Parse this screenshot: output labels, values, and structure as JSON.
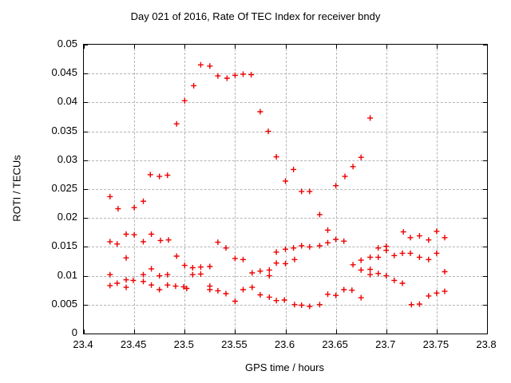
{
  "chart_data": {
    "type": "scatter",
    "title": "Day 021 of 2016, Rate Of TEC Index for receiver bndy",
    "xlabel": "GPS time / hours",
    "ylabel": "ROTI / TECUs",
    "xlim": [
      23.4,
      23.8
    ],
    "ylim": [
      0,
      0.05
    ],
    "xticks": [
      "23.4",
      "23.45",
      "23.5",
      "23.55",
      "23.6",
      "23.65",
      "23.7",
      "23.75",
      "23.8"
    ],
    "yticks": [
      "0",
      "0.005",
      "0.01",
      "0.015",
      "0.02",
      "0.025",
      "0.03",
      "0.035",
      "0.04",
      "0.045",
      "0.05"
    ],
    "grid": true,
    "legend_position": "none",
    "marker": {
      "shape": "plus",
      "color": "#ee0000",
      "size": 7
    },
    "grid_color": "#b4b4b4",
    "frame_color": "#000000",
    "series": [
      {
        "name": "ROTI",
        "points": [
          [
            23.509,
            0.0429
          ],
          [
            23.516,
            0.0465
          ],
          [
            23.525,
            0.0463
          ],
          [
            23.533,
            0.0446
          ],
          [
            23.542,
            0.0442
          ],
          [
            23.55,
            0.0447
          ],
          [
            23.558,
            0.0449
          ],
          [
            23.566,
            0.0448
          ],
          [
            23.5,
            0.0403
          ],
          [
            23.492,
            0.0363
          ],
          [
            23.575,
            0.0384
          ],
          [
            23.583,
            0.035
          ],
          [
            23.591,
            0.0306
          ],
          [
            23.6,
            0.0264
          ],
          [
            23.608,
            0.0284
          ],
          [
            23.616,
            0.0246
          ],
          [
            23.624,
            0.0246
          ],
          [
            23.634,
            0.0206
          ],
          [
            23.65,
            0.0256
          ],
          [
            23.659,
            0.0272
          ],
          [
            23.667,
            0.0289
          ],
          [
            23.675,
            0.0305
          ],
          [
            23.684,
            0.0373
          ],
          [
            23.466,
            0.0275
          ],
          [
            23.475,
            0.0272
          ],
          [
            23.483,
            0.0274
          ],
          [
            23.426,
            0.0237
          ],
          [
            23.434,
            0.0216
          ],
          [
            23.45,
            0.0218
          ],
          [
            23.459,
            0.0229
          ],
          [
            23.442,
            0.0172
          ],
          [
            23.45,
            0.0171
          ],
          [
            23.467,
            0.0172
          ],
          [
            23.426,
            0.0159
          ],
          [
            23.433,
            0.0155
          ],
          [
            23.459,
            0.0159
          ],
          [
            23.476,
            0.0161
          ],
          [
            23.484,
            0.0162
          ],
          [
            23.442,
            0.0131
          ],
          [
            23.492,
            0.0134
          ],
          [
            23.426,
            0.0102
          ],
          [
            23.459,
            0.0102
          ],
          [
            23.467,
            0.0112
          ],
          [
            23.475,
            0.01
          ],
          [
            23.483,
            0.0102
          ],
          [
            23.442,
            0.0093
          ],
          [
            23.449,
            0.0092
          ],
          [
            23.426,
            0.0083
          ],
          [
            23.433,
            0.0087
          ],
          [
            23.442,
            0.008
          ],
          [
            23.459,
            0.009
          ],
          [
            23.467,
            0.0084
          ],
          [
            23.475,
            0.0076
          ],
          [
            23.483,
            0.0084
          ],
          [
            23.491,
            0.0082
          ],
          [
            23.499,
            0.0081
          ],
          [
            23.502,
            0.0078
          ],
          [
            23.5,
            0.0118
          ],
          [
            23.508,
            0.0114
          ],
          [
            23.516,
            0.0115
          ],
          [
            23.525,
            0.0116
          ],
          [
            23.508,
            0.0102
          ],
          [
            23.516,
            0.0103
          ],
          [
            23.533,
            0.0158
          ],
          [
            23.541,
            0.0148
          ],
          [
            23.55,
            0.013
          ],
          [
            23.558,
            0.0128
          ],
          [
            23.567,
            0.0105
          ],
          [
            23.575,
            0.0108
          ],
          [
            23.584,
            0.011
          ],
          [
            23.584,
            0.01
          ],
          [
            23.591,
            0.0141
          ],
          [
            23.591,
            0.0122
          ],
          [
            23.6,
            0.0146
          ],
          [
            23.525,
            0.0082
          ],
          [
            23.525,
            0.0076
          ],
          [
            23.533,
            0.0074
          ],
          [
            23.541,
            0.0069
          ],
          [
            23.55,
            0.0056
          ],
          [
            23.558,
            0.0076
          ],
          [
            23.567,
            0.008
          ],
          [
            23.575,
            0.0067
          ],
          [
            23.584,
            0.0063
          ],
          [
            23.591,
            0.0057
          ],
          [
            23.599,
            0.0058
          ],
          [
            23.6,
            0.0121
          ],
          [
            23.609,
            0.0128
          ],
          [
            23.608,
            0.0148
          ],
          [
            23.616,
            0.0152
          ],
          [
            23.624,
            0.015
          ],
          [
            23.634,
            0.0152
          ],
          [
            23.642,
            0.0157
          ],
          [
            23.642,
            0.0179
          ],
          [
            23.65,
            0.0163
          ],
          [
            23.658,
            0.016
          ],
          [
            23.667,
            0.0119
          ],
          [
            23.675,
            0.0127
          ],
          [
            23.684,
            0.0132
          ],
          [
            23.692,
            0.0132
          ],
          [
            23.692,
            0.0148
          ],
          [
            23.7,
            0.0151
          ],
          [
            23.7,
            0.0144
          ],
          [
            23.675,
            0.011
          ],
          [
            23.684,
            0.0111
          ],
          [
            23.684,
            0.0102
          ],
          [
            23.692,
            0.0104
          ],
          [
            23.7,
            0.01
          ],
          [
            23.708,
            0.0092
          ],
          [
            23.716,
            0.0087
          ],
          [
            23.717,
            0.0176
          ],
          [
            23.724,
            0.0166
          ],
          [
            23.733,
            0.0169
          ],
          [
            23.742,
            0.0162
          ],
          [
            23.75,
            0.0177
          ],
          [
            23.758,
            0.0166
          ],
          [
            23.708,
            0.0135
          ],
          [
            23.716,
            0.0139
          ],
          [
            23.724,
            0.0139
          ],
          [
            23.733,
            0.0132
          ],
          [
            23.742,
            0.0128
          ],
          [
            23.75,
            0.0139
          ],
          [
            23.758,
            0.0107
          ],
          [
            23.609,
            0.005
          ],
          [
            23.616,
            0.0049
          ],
          [
            23.624,
            0.0047
          ],
          [
            23.634,
            0.005
          ],
          [
            23.642,
            0.0068
          ],
          [
            23.65,
            0.0066
          ],
          [
            23.658,
            0.0076
          ],
          [
            23.666,
            0.0075
          ],
          [
            23.675,
            0.0062
          ],
          [
            23.725,
            0.005
          ],
          [
            23.733,
            0.0051
          ],
          [
            23.742,
            0.0065
          ],
          [
            23.75,
            0.007
          ],
          [
            23.758,
            0.0073
          ]
        ]
      }
    ]
  }
}
